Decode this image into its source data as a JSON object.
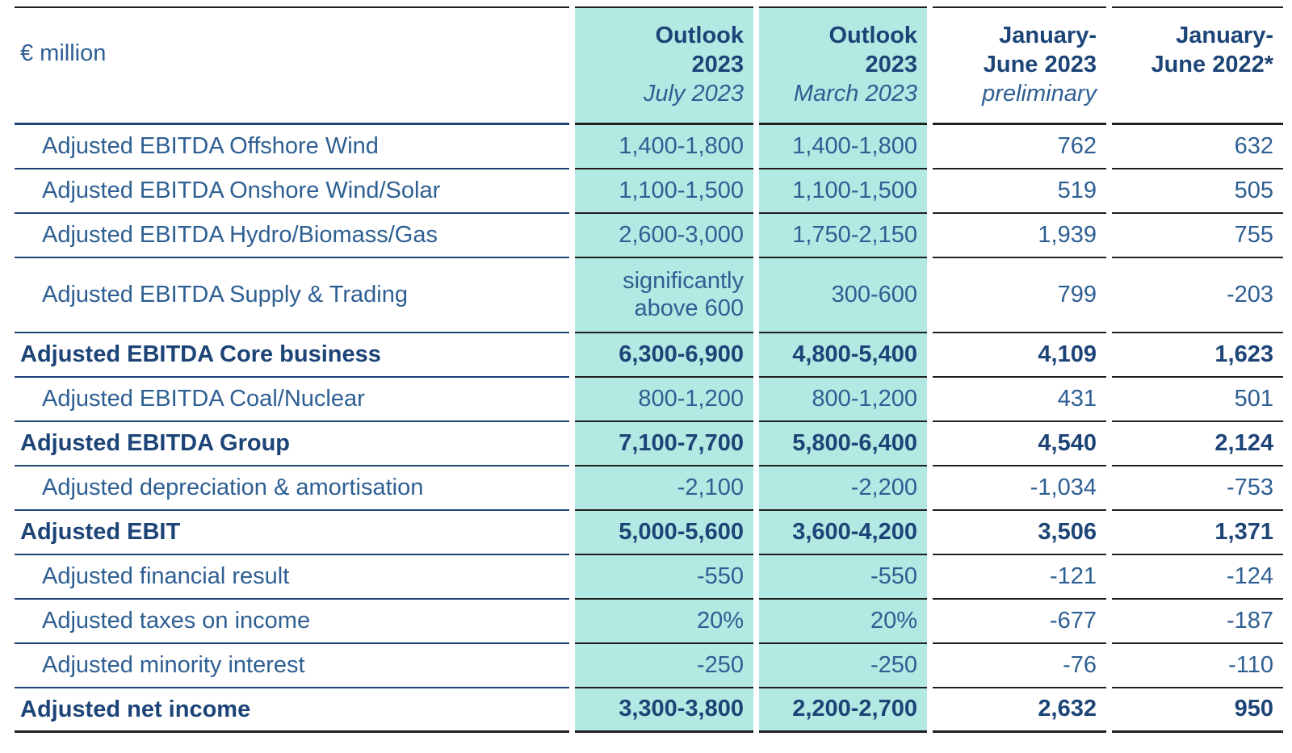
{
  "table": {
    "unit_label": "€ million",
    "columns": [
      {
        "title_lines": [
          "Outlook",
          "2023"
        ],
        "subtitle": "July 2023",
        "highlight": true
      },
      {
        "title_lines": [
          "Outlook",
          "2023"
        ],
        "subtitle": "March 2023",
        "highlight": true
      },
      {
        "title_lines": [
          "January-",
          "June 2023"
        ],
        "subtitle": "preliminary",
        "highlight": false
      },
      {
        "title_lines": [
          "January-",
          "June 2022*"
        ],
        "subtitle": "",
        "highlight": false
      }
    ],
    "rows": [
      {
        "label": "Adjusted EBITDA Offshore Wind",
        "bold": false,
        "tall": false,
        "values": [
          "1,400-1,800",
          "1,400-1,800",
          "762",
          "632"
        ]
      },
      {
        "label": "Adjusted EBITDA Onshore Wind/Solar",
        "bold": false,
        "tall": false,
        "values": [
          "1,100-1,500",
          "1,100-1,500",
          "519",
          "505"
        ]
      },
      {
        "label": "Adjusted EBITDA Hydro/Biomass/Gas",
        "bold": false,
        "tall": false,
        "values": [
          "2,600-3,000",
          "1,750-2,150",
          "1,939",
          "755"
        ]
      },
      {
        "label": "Adjusted EBITDA Supply & Trading",
        "bold": false,
        "tall": true,
        "values": [
          "significantly above 600",
          "300-600",
          "799",
          "-203"
        ]
      },
      {
        "label": "Adjusted EBITDA Core business",
        "bold": true,
        "tall": false,
        "values": [
          "6,300-6,900",
          "4,800-5,400",
          "4,109",
          "1,623"
        ]
      },
      {
        "label": "Adjusted EBITDA Coal/Nuclear",
        "bold": false,
        "tall": false,
        "values": [
          "800-1,200",
          "800-1,200",
          "431",
          "501"
        ]
      },
      {
        "label": "Adjusted EBITDA Group",
        "bold": true,
        "tall": false,
        "values": [
          "7,100-7,700",
          "5,800-6,400",
          "4,540",
          "2,124"
        ]
      },
      {
        "label": "Adjusted depreciation & amortisation",
        "bold": false,
        "tall": false,
        "values": [
          "-2,100",
          "-2,200",
          "-1,034",
          "-753"
        ]
      },
      {
        "label": "Adjusted EBIT",
        "bold": true,
        "tall": false,
        "values": [
          "5,000-5,600",
          "3,600-4,200",
          "3,506",
          "1,371"
        ]
      },
      {
        "label": "Adjusted financial result",
        "bold": false,
        "tall": false,
        "values": [
          "-550",
          "-550",
          "-121",
          "-124"
        ]
      },
      {
        "label": "Adjusted taxes on income",
        "bold": false,
        "tall": false,
        "values": [
          "20%",
          "20%",
          "-677",
          "-187"
        ]
      },
      {
        "label": "Adjusted minority interest",
        "bold": false,
        "tall": false,
        "values": [
          "-250",
          "-250",
          "-76",
          "-110"
        ]
      },
      {
        "label": "Adjusted net income",
        "bold": true,
        "tall": false,
        "values": [
          "3,300-3,800",
          "2,200-2,700",
          "2,632",
          "950"
        ]
      }
    ]
  },
  "colors": {
    "highlight_teal": "#b2e9e2",
    "navy_bold_text": "#1d4477",
    "regular_text": "#2e5f93",
    "label_rule": "#1d4477",
    "dark_rule": "#1f1f1f",
    "background": "#ffffff"
  }
}
